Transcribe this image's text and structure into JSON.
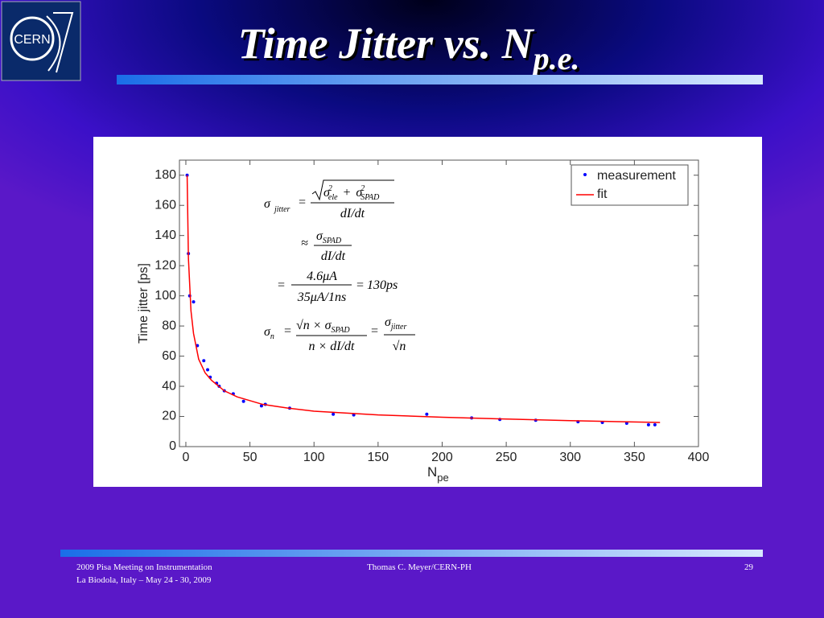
{
  "header": {
    "logo": "CERN",
    "title": "Time Jitter vs. N",
    "title_sub": "p.e."
  },
  "chart_data": {
    "type": "scatter",
    "ylabel": "Time jitter [ps]",
    "xlabel": {
      "text": "N",
      "subscript": "pe"
    },
    "xlim": [
      -5,
      400
    ],
    "ylim": [
      0,
      190
    ],
    "xticks": [
      0,
      50,
      100,
      150,
      200,
      250,
      300,
      350,
      400
    ],
    "yticks": [
      0,
      20,
      40,
      60,
      80,
      100,
      120,
      140,
      160,
      180
    ],
    "legend": "top-right",
    "series": [
      {
        "name": "measurement",
        "color": "#0000ff",
        "marker": "dot",
        "x": [
          1,
          2,
          3,
          6,
          9,
          14,
          17,
          19,
          24,
          26,
          30,
          37,
          45,
          59,
          62,
          81,
          115,
          131,
          188,
          223,
          245,
          273,
          306,
          325,
          344,
          361,
          366
        ],
        "values": [
          180,
          128,
          100,
          96,
          67,
          57,
          51,
          46,
          42,
          40,
          37,
          35,
          30,
          27,
          28,
          25.5,
          21.5,
          21,
          21.5,
          19,
          18,
          17.5,
          16.5,
          16,
          15.5,
          14.5,
          14.5
        ]
      },
      {
        "name": "fit",
        "color": "#ff0000",
        "marker": "line",
        "x": [
          1,
          2,
          4,
          6,
          10,
          15,
          20,
          30,
          40,
          60,
          80,
          100,
          150,
          200,
          250,
          300,
          370
        ],
        "values": [
          180,
          125,
          90,
          75,
          58,
          49,
          44,
          37,
          33,
          28,
          25.5,
          23.5,
          21,
          19.5,
          18.3,
          17.2,
          16
        ]
      }
    ],
    "annotations": {
      "sigma": "σ",
      "jitter": "jitter",
      "eq": "=",
      "sq": "2",
      "ele": "ele",
      "plus": "+",
      "spad": "SPAD",
      "didt": "dI/dt",
      "approx": "≈",
      "num3": "4.6μA",
      "den3": "35μA/1ns",
      "res3": "130ps",
      "n": "n",
      "num4": "√n × σ",
      "den4": "n × dI/dt",
      "sqrtn": "√n"
    }
  },
  "footer": {
    "event": "2009 Pisa Meeting on Instrumentation",
    "place": "La Biodola, Italy – May 24 - 30, 2009",
    "author": "Thomas C. Meyer/CERN-PH",
    "page": "29"
  }
}
